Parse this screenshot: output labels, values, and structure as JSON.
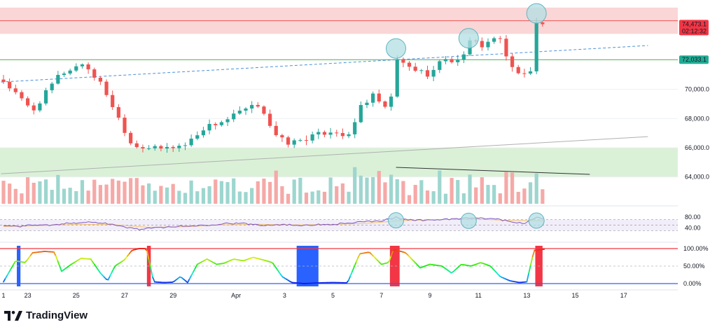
{
  "brand": {
    "name": "TradingView",
    "icon": "tradingview-logo-icon"
  },
  "colors": {
    "up": "#26a69a",
    "down": "#ef5350",
    "up_vol": "#9dd6cf",
    "down_vol": "#f5a9a7",
    "rsi": "#7e57c2",
    "rsi_ma": "#f5c26b",
    "stoch_top": "#f23645",
    "stoch_bottom": "#2962ff",
    "zone_red": "#f9d2d3",
    "zone_green": "#d6efd4",
    "highlight": "#b2dfe3",
    "trend": "#4a90d9"
  },
  "chart_data": [
    {
      "type": "candlestick",
      "title": "",
      "price_axis": [
        {
          "label": "70,000.0",
          "value": 70000
        },
        {
          "label": "68,000.0",
          "value": 68000
        },
        {
          "label": "66,000.0",
          "value": 66000
        },
        {
          "label": "64,000.0",
          "value": 64000
        }
      ],
      "price_tags": [
        {
          "label": "74,473.1",
          "value": 74473.1,
          "sublabel": "02:12:32",
          "color": "#f23645"
        },
        {
          "label": "72,033.1",
          "value": 72033.1,
          "color": "#22ab94"
        }
      ],
      "x_axis": [
        {
          "label": "1",
          "day": 0
        },
        {
          "label": "23",
          "day": 1
        },
        {
          "label": "25",
          "day": 3
        },
        {
          "label": "27",
          "day": 5
        },
        {
          "label": "29",
          "day": 7
        },
        {
          "label": "Apr",
          "day": 9.6
        },
        {
          "label": "3",
          "day": 11.6
        },
        {
          "label": "5",
          "day": 13.6
        },
        {
          "label": "7",
          "day": 15.6
        },
        {
          "label": "9",
          "day": 17.6
        },
        {
          "label": "11",
          "day": 19.6
        },
        {
          "label": "13",
          "day": 21.6
        },
        {
          "label": "15",
          "day": 23.6
        },
        {
          "label": "17",
          "day": 25.6
        }
      ],
      "zones": [
        {
          "name": "red-zone",
          "from": 73800,
          "to": 75600
        },
        {
          "name": "green-zone",
          "from": 64000,
          "to": 66000
        }
      ],
      "horizontal_lines": [
        {
          "value": 74700,
          "color": "#ef5350"
        },
        {
          "value": 72033.1,
          "color": "#4caf50"
        }
      ],
      "trendlines": [
        {
          "from": [
            -0.1,
            70500
          ],
          "to": [
            26.6,
            73000
          ],
          "style": "dashed",
          "color": "#4a90d9"
        },
        {
          "from": [
            -0.1,
            64220
          ],
          "to": [
            26.6,
            66760
          ],
          "style": "solid",
          "color": "#b0b0b0"
        }
      ],
      "highlights": [
        {
          "day": 16.2,
          "value": 72800
        },
        {
          "day": 19.2,
          "value": 73500
        },
        {
          "day": 22.0,
          "value": 75200
        }
      ],
      "anchor_candles": [
        {
          "day": 0.0,
          "close": 70550
        },
        {
          "day": 1.2,
          "close": 68500
        },
        {
          "day": 2.3,
          "close": 71000
        },
        {
          "day": 3.3,
          "close": 71800
        },
        {
          "day": 4.1,
          "close": 70200
        },
        {
          "day": 5.3,
          "close": 66200
        },
        {
          "day": 6.4,
          "close": 65900
        },
        {
          "day": 7.5,
          "close": 66200
        },
        {
          "day": 8.3,
          "close": 67400
        },
        {
          "day": 9.2,
          "close": 67900
        },
        {
          "day": 9.7,
          "close": 68400
        },
        {
          "day": 10.6,
          "close": 69000
        },
        {
          "day": 11.2,
          "close": 66800
        },
        {
          "day": 11.8,
          "close": 66300
        },
        {
          "day": 12.6,
          "close": 66700
        },
        {
          "day": 13.6,
          "close": 67200
        },
        {
          "day": 14.3,
          "close": 66700
        },
        {
          "day": 14.7,
          "close": 68800
        },
        {
          "day": 15.3,
          "close": 69600
        },
        {
          "day": 15.9,
          "close": 68300
        },
        {
          "day": 16.2,
          "close": 72000
        },
        {
          "day": 16.9,
          "close": 71400
        },
        {
          "day": 17.6,
          "close": 71000
        },
        {
          "day": 18.2,
          "close": 72200
        },
        {
          "day": 18.7,
          "close": 71800
        },
        {
          "day": 19.3,
          "close": 73300
        },
        {
          "day": 19.8,
          "close": 73000
        },
        {
          "day": 20.4,
          "close": 73700
        },
        {
          "day": 20.9,
          "close": 71600
        },
        {
          "day": 21.5,
          "close": 71000
        },
        {
          "day": 21.8,
          "close": 71200
        },
        {
          "day": 22.0,
          "close": 74700
        },
        {
          "day": 22.3,
          "close": 74473
        }
      ],
      "volume_divergence_line": {
        "from": [
          16.2,
          5200
        ],
        "to": [
          24.2,
          4200
        ]
      }
    },
    {
      "type": "line",
      "name": "",
      "range": [
        0,
        100
      ],
      "axis": [
        {
          "label": "80.00",
          "value": 80
        },
        {
          "label": "40.00",
          "value": 40
        }
      ],
      "bands": {
        "upper": 70,
        "lower": 30
      },
      "anchors": [
        [
          0,
          48
        ],
        [
          0.7,
          46
        ],
        [
          1.4,
          52
        ],
        [
          2.0,
          49
        ],
        [
          2.8,
          58
        ],
        [
          3.5,
          61
        ],
        [
          4.2,
          58
        ],
        [
          4.9,
          44
        ],
        [
          5.6,
          35
        ],
        [
          6.3,
          40
        ],
        [
          7.0,
          45
        ],
        [
          7.8,
          47
        ],
        [
          8.6,
          52
        ],
        [
          9.3,
          57
        ],
        [
          10.0,
          55
        ],
        [
          10.7,
          50
        ],
        [
          11.4,
          52
        ],
        [
          12.1,
          50
        ],
        [
          12.8,
          51
        ],
        [
          13.5,
          53
        ],
        [
          14.2,
          57
        ],
        [
          14.9,
          62
        ],
        [
          15.6,
          66
        ],
        [
          16.2,
          78
        ],
        [
          16.7,
          70
        ],
        [
          17.3,
          68
        ],
        [
          18.0,
          70
        ],
        [
          18.6,
          72
        ],
        [
          19.2,
          76
        ],
        [
          19.8,
          74
        ],
        [
          20.4,
          73
        ],
        [
          20.9,
          62
        ],
        [
          21.5,
          58
        ],
        [
          22.0,
          77
        ],
        [
          22.3,
          74
        ]
      ],
      "ma_anchors": [
        [
          0,
          45
        ],
        [
          1.5,
          48
        ],
        [
          3.0,
          53
        ],
        [
          4.5,
          52
        ],
        [
          6.0,
          42
        ],
        [
          7.5,
          44
        ],
        [
          9.0,
          51
        ],
        [
          10.5,
          53
        ],
        [
          12.0,
          51
        ],
        [
          13.5,
          52
        ],
        [
          15.0,
          57
        ],
        [
          16.5,
          67
        ],
        [
          18.0,
          70
        ],
        [
          19.5,
          72
        ],
        [
          21.0,
          67
        ],
        [
          22.3,
          66
        ]
      ],
      "highlights": [
        {
          "day": 16.2,
          "value": 78
        },
        {
          "day": 19.2,
          "value": 76
        },
        {
          "day": 22.0,
          "value": 77
        }
      ]
    },
    {
      "type": "line",
      "name": "",
      "range": [
        0,
        100
      ],
      "axis": [
        {
          "label": "100.00%",
          "value": 100
        },
        {
          "label": "50.00%",
          "value": 50
        },
        {
          "label": "0.00%",
          "value": 0
        }
      ],
      "anchors": [
        [
          0,
          5
        ],
        [
          0.5,
          65
        ],
        [
          0.9,
          60
        ],
        [
          1.2,
          88
        ],
        [
          1.7,
          92
        ],
        [
          2.1,
          90
        ],
        [
          2.4,
          35
        ],
        [
          2.8,
          55
        ],
        [
          3.2,
          72
        ],
        [
          3.6,
          70
        ],
        [
          4.0,
          30
        ],
        [
          4.3,
          8
        ],
        [
          4.6,
          50
        ],
        [
          5.0,
          68
        ],
        [
          5.3,
          95
        ],
        [
          5.6,
          100
        ],
        [
          5.9,
          100
        ],
        [
          6.2,
          5
        ],
        [
          6.6,
          3
        ],
        [
          7.0,
          4
        ],
        [
          7.3,
          20
        ],
        [
          7.6,
          3
        ],
        [
          8.0,
          55
        ],
        [
          8.4,
          70
        ],
        [
          8.8,
          55
        ],
        [
          9.1,
          58
        ],
        [
          9.5,
          70
        ],
        [
          9.9,
          65
        ],
        [
          10.3,
          75
        ],
        [
          10.7,
          68
        ],
        [
          11.1,
          60
        ],
        [
          11.5,
          20
        ],
        [
          11.9,
          3
        ],
        [
          12.4,
          0
        ],
        [
          13.0,
          2
        ],
        [
          13.6,
          3
        ],
        [
          14.2,
          2
        ],
        [
          14.7,
          85
        ],
        [
          15.1,
          90
        ],
        [
          15.6,
          55
        ],
        [
          15.9,
          60
        ],
        [
          16.1,
          98
        ],
        [
          16.6,
          88
        ],
        [
          17.2,
          45
        ],
        [
          17.6,
          55
        ],
        [
          18.1,
          50
        ],
        [
          18.5,
          30
        ],
        [
          18.9,
          55
        ],
        [
          19.3,
          50
        ],
        [
          19.7,
          60
        ],
        [
          20.1,
          50
        ],
        [
          20.5,
          20
        ],
        [
          20.9,
          8
        ],
        [
          21.3,
          3
        ],
        [
          21.6,
          5
        ],
        [
          21.9,
          95
        ],
        [
          22.3,
          98
        ]
      ],
      "highlight_bars": [
        {
          "from": 0.55,
          "to": 0.7,
          "color": "#2962ff"
        },
        {
          "from": 5.92,
          "to": 6.08,
          "color": "#f23645"
        },
        {
          "from": 12.1,
          "to": 13.0,
          "color": "#2962ff"
        },
        {
          "from": 15.95,
          "to": 16.35,
          "color": "#f23645"
        },
        {
          "from": 21.95,
          "to": 22.25,
          "color": "#f23645"
        }
      ]
    }
  ]
}
